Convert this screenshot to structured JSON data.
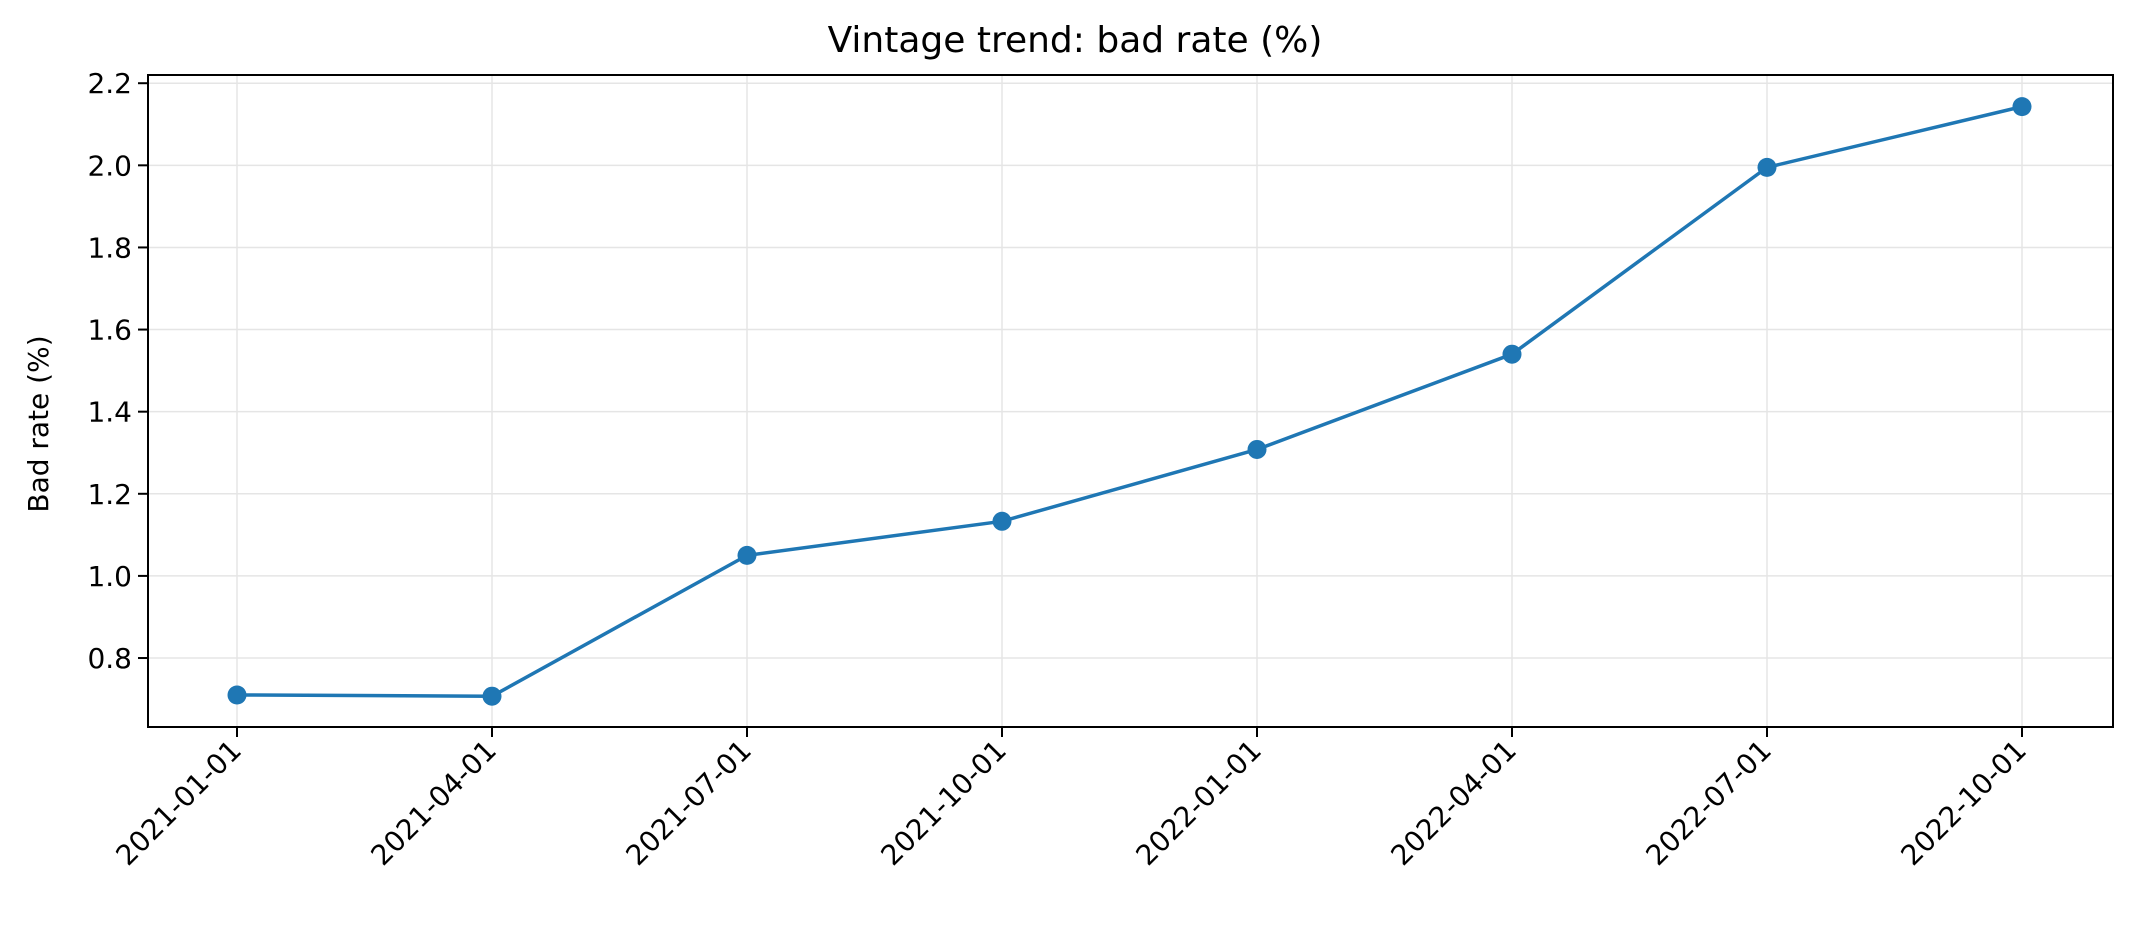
{
  "chart_data": {
    "type": "line",
    "title": "Vintage trend: bad rate (%)",
    "xlabel": "",
    "ylabel": "Bad rate (%)",
    "x": [
      "2021-01-01",
      "2021-04-01",
      "2021-07-01",
      "2021-10-01",
      "2022-01-01",
      "2022-04-01",
      "2022-07-01",
      "2022-10-01"
    ],
    "series": [
      {
        "values": [
          0.71,
          0.707,
          1.05,
          1.133,
          1.308,
          1.54,
          1.995,
          2.143
        ]
      }
    ],
    "y_ticks": [
      "0.8",
      "1.0",
      "1.2",
      "1.4",
      "1.6",
      "1.8",
      "2.0",
      "2.2"
    ],
    "ylim": [
      0.632,
      2.22
    ],
    "grid": true,
    "marker": "circle",
    "colors": {
      "line": "#1f77b4",
      "grid": "#e5e5e5",
      "axis": "#000000"
    }
  }
}
